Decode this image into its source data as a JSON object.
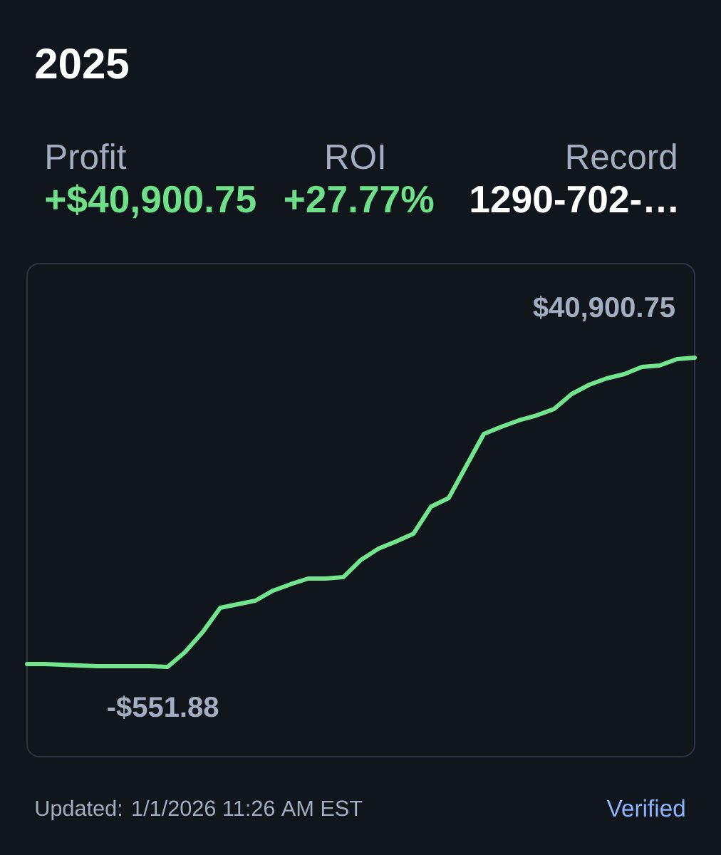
{
  "chart_data": {
    "type": "line",
    "title": "2025",
    "color": "#72e58e",
    "categories": [
      null,
      null,
      null,
      null,
      null,
      null,
      null,
      null,
      null,
      null,
      null,
      null,
      null,
      null,
      null,
      null,
      null,
      null,
      null,
      null,
      null,
      null,
      null,
      null,
      null,
      null,
      null,
      null,
      null,
      null,
      null,
      null,
      null,
      null,
      null,
      null,
      null,
      null,
      null
    ],
    "values": [
      -170,
      -170,
      -265,
      -361,
      -456,
      -456,
      -456,
      -456,
      -551.88,
      1450,
      4130,
      7380,
      7850,
      8330,
      9670,
      10530,
      11290,
      11290,
      11480,
      13780,
      15300,
      16260,
      17310,
      20940,
      22090,
      26380,
      30680,
      31640,
      32500,
      33160,
      34020,
      36030,
      37270,
      38130,
      38700,
      39660,
      39850,
      40710,
      40900.75
    ],
    "value_labels": [
      null,
      null,
      null,
      null,
      null,
      null,
      null,
      null,
      "-$551.88",
      null,
      null,
      null,
      null,
      null,
      null,
      null,
      null,
      null,
      null,
      null,
      null,
      null,
      null,
      null,
      null,
      null,
      null,
      null,
      null,
      null,
      null,
      null,
      null,
      null,
      null,
      null,
      null,
      null,
      "$40,900.75"
    ],
    "annotations": [
      "Profit",
      "+$40,900.75",
      "ROI",
      "+27.77%",
      "Record",
      "1290-702-…",
      "Updated: 1/1/2026 11:26 AM EST",
      "Verified"
    ]
  }
}
